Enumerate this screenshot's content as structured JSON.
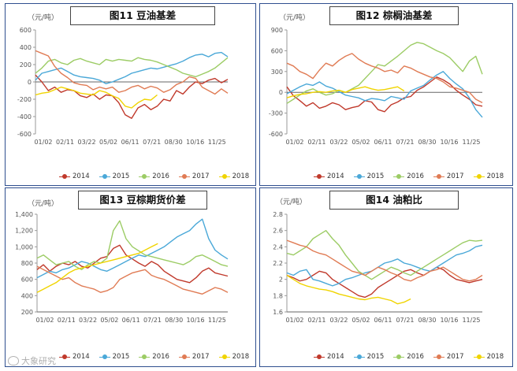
{
  "watermark": "大象研究",
  "panels": [
    {
      "title": "图11 豆油基差",
      "unit": "（元/吨）",
      "chart_data": {
        "type": "line",
        "title": "图11 豆油基差",
        "ylabel": "（元/吨）",
        "ylim": [
          -600,
          600
        ],
        "yticks": [
          -600,
          -400,
          -200,
          0,
          200,
          400,
          600
        ],
        "xticks": [
          "01/02",
          "02/11",
          "03/22",
          "05/02",
          "06/11",
          "07/21",
          "08/30",
          "10/16",
          "11/25"
        ],
        "series": [
          {
            "name": "2014",
            "color": "#c0392b",
            "values": [
              80,
              0,
              -100,
              -60,
              -120,
              -90,
              -100,
              -160,
              -180,
              -140,
              -200,
              -150,
              -160,
              -240,
              -380,
              -420,
              -300,
              -260,
              -320,
              -280,
              -200,
              -220,
              -100,
              -140,
              -60,
              0,
              -20,
              20,
              40,
              -10,
              30
            ]
          },
          {
            "name": "2015",
            "color": "#4aa8d8",
            "values": [
              20,
              100,
              120,
              140,
              160,
              120,
              80,
              60,
              50,
              40,
              20,
              -20,
              0,
              30,
              60,
              100,
              120,
              140,
              160,
              150,
              170,
              190,
              210,
              240,
              280,
              310,
              320,
              290,
              330,
              340,
              290
            ]
          },
          {
            "name": "2016",
            "color": "#9ccc65",
            "values": [
              100,
              160,
              240,
              260,
              220,
              200,
              250,
              270,
              240,
              220,
              200,
              260,
              240,
              260,
              250,
              240,
              280,
              260,
              250,
              230,
              200,
              170,
              140,
              100,
              80,
              60,
              90,
              120,
              160,
              220,
              280
            ]
          },
          {
            "name": "2017",
            "color": "#e07b54",
            "values": [
              360,
              330,
              300,
              180,
              100,
              50,
              -10,
              -30,
              -40,
              -90,
              -60,
              -80,
              -60,
              -120,
              -100,
              -60,
              -40,
              -80,
              -50,
              -70,
              -120,
              -90,
              -30,
              0,
              60,
              40,
              -60,
              -100,
              -140,
              -80,
              -130
            ]
          },
          {
            "name": "2018",
            "color": "#f0d400",
            "values": [
              -150,
              -130,
              -120,
              -90,
              -60,
              -80,
              -100,
              -130,
              -140,
              -150,
              -100,
              -120,
              -160,
              -190,
              -280,
              -300,
              -240,
              -200,
              -210,
              -150
            ]
          }
        ]
      }
    },
    {
      "title": "图12 棕榈油基差",
      "unit": "（元/吨）",
      "chart_data": {
        "type": "line",
        "title": "图12 棕榈油基差",
        "ylabel": "（元/吨）",
        "ylim": [
          -600,
          900
        ],
        "yticks": [
          -600,
          -300,
          0,
          300,
          600,
          900
        ],
        "xticks": [
          "01/02",
          "02/11",
          "03/22",
          "05/02",
          "06/11",
          "07/21",
          "08/30",
          "10/16",
          "11/25"
        ],
        "series": [
          {
            "name": "2014",
            "color": "#c0392b",
            "values": [
              80,
              -50,
              -120,
              -200,
              -150,
              -230,
              -200,
              -150,
              -180,
              -250,
              -220,
              -200,
              -120,
              -140,
              -250,
              -280,
              -180,
              -140,
              -80,
              -60,
              30,
              80,
              150,
              220,
              180,
              120,
              30,
              -40,
              -100,
              -180,
              -200
            ]
          },
          {
            "name": "2015",
            "color": "#4aa8d8",
            "values": [
              -20,
              30,
              80,
              120,
              100,
              150,
              90,
              60,
              10,
              -40,
              -60,
              -80,
              -120,
              -90,
              -100,
              -120,
              -60,
              -80,
              -100,
              20,
              60,
              100,
              180,
              250,
              300,
              200,
              120,
              50,
              -80,
              -250,
              -360
            ]
          },
          {
            "name": "2016",
            "color": "#9ccc65",
            "values": [
              -160,
              -100,
              -40,
              20,
              50,
              0,
              -40,
              -20,
              30,
              0,
              50,
              100,
              200,
              300,
              400,
              380,
              450,
              520,
              600,
              680,
              720,
              700,
              650,
              600,
              560,
              500,
              400,
              300,
              450,
              520,
              260
            ]
          },
          {
            "name": "2017",
            "color": "#e07b54",
            "values": [
              420,
              380,
              300,
              260,
              200,
              320,
              420,
              380,
              460,
              520,
              560,
              480,
              420,
              380,
              350,
              300,
              320,
              280,
              380,
              350,
              300,
              260,
              220,
              200,
              150,
              80,
              60,
              30,
              0,
              -100,
              -150
            ]
          },
          {
            "name": "2018",
            "color": "#f0d400",
            "values": [
              -80,
              -50,
              -30,
              -20,
              0,
              10,
              0,
              20,
              30,
              0,
              40,
              60,
              80,
              50,
              30,
              40,
              60,
              80,
              20
            ]
          }
        ]
      }
    },
    {
      "title": "图13 豆棕期货价差",
      "unit": "（元/吨）",
      "chart_data": {
        "type": "line",
        "title": "图13 豆棕期货价差",
        "ylabel": "（元/吨）",
        "ylim": [
          200,
          1400
        ],
        "yticks": [
          200,
          400,
          600,
          800,
          1000,
          1200,
          1400
        ],
        "ytick_labels": [
          "200",
          "400",
          "600",
          "800",
          "1,000",
          "1,200",
          "1,400"
        ],
        "xticks": [
          "01/02",
          "02/11",
          "03/22",
          "05/02",
          "06/11",
          "07/21",
          "08/30",
          "10/16",
          "11/25"
        ],
        "series": [
          {
            "name": "2014",
            "color": "#c0392b",
            "values": [
              720,
              780,
              700,
              760,
              800,
              780,
              820,
              760,
              740,
              800,
              860,
              880,
              980,
              1020,
              900,
              850,
              800,
              760,
              820,
              780,
              700,
              650,
              600,
              580,
              560,
              620,
              700,
              740,
              680,
              660,
              640
            ]
          },
          {
            "name": "2015",
            "color": "#4aa8d8",
            "values": [
              620,
              660,
              700,
              680,
              720,
              740,
              780,
              820,
              800,
              760,
              720,
              700,
              740,
              780,
              820,
              860,
              900,
              880,
              920,
              960,
              1000,
              1060,
              1120,
              1160,
              1200,
              1280,
              1340,
              1100,
              960,
              900,
              850
            ]
          },
          {
            "name": "2016",
            "color": "#9ccc65",
            "values": [
              860,
              900,
              840,
              780,
              800,
              820,
              760,
              720,
              780,
              820,
              800,
              860,
              1200,
              1320,
              1100,
              1000,
              950,
              900,
              880,
              860,
              840,
              820,
              800,
              780,
              820,
              880,
              900,
              860,
              820,
              780,
              760
            ]
          },
          {
            "name": "2017",
            "color": "#e07b54",
            "values": [
              760,
              720,
              680,
              640,
              600,
              620,
              560,
              520,
              500,
              480,
              440,
              460,
              500,
              600,
              640,
              680,
              700,
              720,
              650,
              620,
              600,
              560,
              520,
              480,
              460,
              440,
              420,
              460,
              500,
              480,
              440
            ]
          },
          {
            "name": "2018",
            "color": "#f0d400",
            "values": [
              440,
              480,
              520,
              560,
              620,
              680,
              720,
              740,
              760,
              780,
              800,
              820,
              840,
              860,
              880,
              900,
              920,
              960,
              1000,
              1040
            ]
          }
        ]
      }
    },
    {
      "title": "图14 油粕比",
      "unit": "（元/吨）",
      "chart_data": {
        "type": "line",
        "title": "图14 油粕比",
        "ylabel": "（元/吨）",
        "ylim": [
          1.6,
          2.8
        ],
        "yticks": [
          1.6,
          1.8,
          2.0,
          2.2,
          2.4,
          2.6,
          2.8
        ],
        "ytick_labels": [
          "1.6",
          "1.8",
          "2",
          "2.2",
          "2.4",
          "2.6",
          "2.8"
        ],
        "xticks": [
          "01/02",
          "02/11",
          "03/22",
          "05/02",
          "06/11",
          "07/21",
          "08/30",
          "10/16",
          "11/25"
        ],
        "series": [
          {
            "name": "2014",
            "color": "#c0392b",
            "values": [
              2.05,
              2.02,
              1.98,
              2.0,
              2.05,
              2.1,
              2.08,
              2.0,
              1.95,
              1.9,
              1.85,
              1.8,
              1.78,
              1.82,
              1.9,
              1.95,
              2.0,
              2.05,
              2.1,
              2.12,
              2.08,
              2.05,
              2.1,
              2.15,
              2.12,
              2.05,
              2.0,
              1.98,
              1.96,
              1.98,
              2.0
            ]
          },
          {
            "name": "2015",
            "color": "#4aa8d8",
            "values": [
              2.08,
              2.05,
              2.1,
              2.12,
              2.0,
              1.98,
              1.95,
              1.92,
              1.95,
              2.0,
              2.02,
              2.05,
              2.08,
              2.1,
              2.15,
              2.2,
              2.22,
              2.25,
              2.2,
              2.18,
              2.15,
              2.12,
              2.1,
              2.15,
              2.2,
              2.25,
              2.3,
              2.32,
              2.35,
              2.4,
              2.42
            ]
          },
          {
            "name": "2016",
            "color": "#9ccc65",
            "values": [
              2.32,
              2.3,
              2.35,
              2.4,
              2.5,
              2.55,
              2.6,
              2.5,
              2.42,
              2.3,
              2.2,
              2.1,
              2.05,
              2.0,
              2.05,
              2.1,
              2.15,
              2.12,
              2.08,
              2.05,
              2.1,
              2.15,
              2.2,
              2.25,
              2.3,
              2.35,
              2.4,
              2.45,
              2.48,
              2.47,
              2.48
            ]
          },
          {
            "name": "2017",
            "color": "#e07b54",
            "values": [
              2.48,
              2.45,
              2.42,
              2.4,
              2.35,
              2.32,
              2.3,
              2.25,
              2.2,
              2.15,
              2.1,
              2.08,
              2.05,
              2.1,
              2.15,
              2.12,
              2.08,
              2.05,
              2.0,
              1.98,
              2.02,
              2.05,
              2.1,
              2.12,
              2.15,
              2.1,
              2.05,
              2.0,
              1.98,
              2.0,
              2.05
            ]
          },
          {
            "name": "2018",
            "color": "#f0d400",
            "values": [
              2.05,
              2.0,
              1.95,
              1.92,
              1.9,
              1.88,
              1.87,
              1.85,
              1.82,
              1.8,
              1.78,
              1.76,
              1.75,
              1.77,
              1.78,
              1.76,
              1.74,
              1.7,
              1.72,
              1.76
            ]
          }
        ]
      }
    }
  ]
}
